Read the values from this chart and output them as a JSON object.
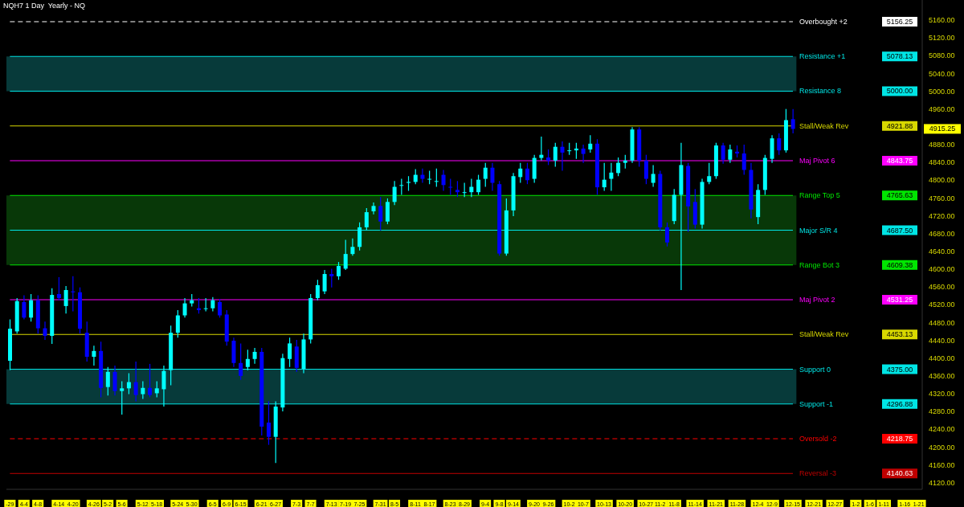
{
  "chart_data": {
    "type": "candlestick",
    "title": "NQH7 1 Day  Yearly - NQ",
    "categories": [
      "-29",
      null,
      "4-4",
      null,
      "4-8",
      null,
      null,
      "4-14",
      null,
      "4-20",
      null,
      null,
      "4-26",
      null,
      "5-2",
      null,
      "5-6",
      null,
      null,
      "5-12",
      null,
      "5-18",
      null,
      null,
      "5-24",
      null,
      "5-30",
      null,
      null,
      "6-5",
      null,
      "6-9",
      null,
      "6-15",
      null,
      null,
      "6-21",
      null,
      "6-27",
      null,
      null,
      "7-3",
      null,
      "7-7",
      null,
      null,
      "7-13",
      null,
      "7-19",
      null,
      "7-25",
      null,
      null,
      "7-31",
      null,
      "8-5",
      null,
      null,
      "8-11",
      null,
      "8-17",
      null,
      null,
      "8-23",
      null,
      "8-29",
      null,
      null,
      "9-4",
      null,
      "9-8",
      null,
      "9-14",
      null,
      null,
      "9-20",
      null,
      "9-26",
      null,
      null,
      "10-2",
      null,
      "10-7",
      null,
      null,
      "10-13",
      null,
      null,
      "10-20",
      null,
      null,
      "10-27",
      null,
      "11-2",
      null,
      "11-8",
      null,
      null,
      "11-14",
      null,
      null,
      "11-21",
      null,
      null,
      "11-28",
      null,
      null,
      "12-4",
      null,
      "12-9",
      null,
      null,
      "12-15",
      null,
      null,
      "12-21",
      null,
      null,
      "12-27",
      null,
      null,
      "1-2",
      null,
      "1-6",
      null,
      "1-11",
      null,
      null,
      "1-16",
      null,
      "1-21"
    ],
    "ohlc": [
      [
        4394,
        4487,
        4373,
        4466
      ],
      [
        4460,
        4535,
        4455,
        4528
      ],
      [
        4526,
        4541,
        4487,
        4491
      ],
      [
        4491,
        4544,
        4482,
        4530
      ],
      [
        4530,
        4541,
        4455,
        4467
      ],
      [
        4467,
        4482,
        4441,
        4450
      ],
      [
        4450,
        4557,
        4432,
        4542
      ],
      [
        4544,
        4582,
        4530,
        4535
      ],
      [
        4517,
        4562,
        4500,
        4553
      ],
      [
        4550,
        4584,
        4505,
        4548
      ],
      [
        4548,
        4559,
        4455,
        4466
      ],
      [
        4457,
        4482,
        4392,
        4403
      ],
      [
        4403,
        4428,
        4383,
        4416
      ],
      [
        4416,
        4437,
        4312,
        4333
      ],
      [
        4335,
        4380,
        4316,
        4369
      ],
      [
        4369,
        4383,
        4316,
        4326
      ],
      [
        4326,
        4348,
        4273,
        4332
      ],
      [
        4332,
        4366,
        4319,
        4346
      ],
      [
        4346,
        4392,
        4303,
        4317
      ],
      [
        4319,
        4348,
        4308,
        4333
      ],
      [
        4333,
        4387,
        4312,
        4317
      ],
      [
        4321,
        4348,
        4312,
        4332
      ],
      [
        4330,
        4383,
        4291,
        4371
      ],
      [
        4373,
        4473,
        4339,
        4457
      ],
      [
        4457,
        4508,
        4446,
        4496
      ],
      [
        4496,
        4535,
        4491,
        4523
      ],
      [
        4523,
        4544,
        4516,
        4530
      ],
      [
        4512,
        4535,
        4500,
        4508
      ],
      [
        4512,
        4535,
        4505,
        4512
      ],
      [
        4512,
        4537,
        4505,
        4530
      ],
      [
        4526,
        4533,
        4491,
        4496
      ],
      [
        4498,
        4508,
        4428,
        4437
      ],
      [
        4439,
        4446,
        4380,
        4389
      ],
      [
        4389,
        4433,
        4351,
        4360
      ],
      [
        4380,
        4419,
        4373,
        4398
      ],
      [
        4398,
        4423,
        4387,
        4414
      ],
      [
        4414,
        4423,
        4226,
        4246
      ],
      [
        4255,
        4303,
        4205,
        4223
      ],
      [
        4223,
        4303,
        4164,
        4291
      ],
      [
        4289,
        4410,
        4280,
        4400
      ],
      [
        4398,
        4446,
        4380,
        4433
      ],
      [
        4426,
        4441,
        4369,
        4378
      ],
      [
        4376,
        4455,
        4366,
        4442
      ],
      [
        4442,
        4544,
        4433,
        4535
      ],
      [
        4535,
        4576,
        4530,
        4564
      ],
      [
        4550,
        4598,
        4544,
        4589
      ],
      [
        4589,
        4601,
        4559,
        4584
      ],
      [
        4584,
        4616,
        4576,
        4607
      ],
      [
        4601,
        4666,
        4598,
        4634
      ],
      [
        4634,
        4669,
        4630,
        4650
      ],
      [
        4650,
        4705,
        4642,
        4694
      ],
      [
        4694,
        4737,
        4687,
        4728
      ],
      [
        4730,
        4750,
        4723,
        4742
      ],
      [
        4742,
        4762,
        4687,
        4707
      ],
      [
        4707,
        4759,
        4701,
        4751
      ],
      [
        4751,
        4798,
        4744,
        4785
      ],
      [
        4789,
        4803,
        4767,
        4789
      ],
      [
        4794,
        4809,
        4776,
        4796
      ],
      [
        4796,
        4825,
        4791,
        4812
      ],
      [
        4812,
        4826,
        4794,
        4803
      ],
      [
        4803,
        4821,
        4791,
        4803
      ],
      [
        4798,
        4826,
        4785,
        4798
      ],
      [
        4812,
        4823,
        4776,
        4789
      ],
      [
        4785,
        4803,
        4767,
        4784
      ],
      [
        4778,
        4798,
        4762,
        4773
      ],
      [
        4773,
        4794,
        4762,
        4773
      ],
      [
        4773,
        4803,
        4762,
        4785
      ],
      [
        4773,
        4812,
        4767,
        4801
      ],
      [
        4803,
        4839,
        4785,
        4828
      ],
      [
        4828,
        4839,
        4776,
        4794
      ],
      [
        4791,
        4798,
        4630,
        4635
      ],
      [
        4635,
        4759,
        4630,
        4732
      ],
      [
        4732,
        4816,
        4719,
        4809
      ],
      [
        4807,
        4839,
        4794,
        4826
      ],
      [
        4826,
        4839,
        4791,
        4800
      ],
      [
        4803,
        4857,
        4794,
        4850
      ],
      [
        4850,
        4898,
        4844,
        4857
      ],
      [
        4851,
        4869,
        4834,
        4844
      ],
      [
        4844,
        4884,
        4830,
        4875
      ],
      [
        4875,
        4887,
        4821,
        4862
      ],
      [
        4866,
        4884,
        4857,
        4867
      ],
      [
        4867,
        4884,
        4848,
        4871
      ],
      [
        4871,
        4880,
        4839,
        4859
      ],
      [
        4869,
        4901,
        4862,
        4882
      ],
      [
        4882,
        4892,
        4767,
        4784
      ],
      [
        4784,
        4839,
        4776,
        4801
      ],
      [
        4803,
        4839,
        4776,
        4817
      ],
      [
        4816,
        4851,
        4809,
        4839
      ],
      [
        4839,
        4857,
        4826,
        4844
      ],
      [
        4844,
        4919,
        4839,
        4914
      ],
      [
        4914,
        4919,
        4830,
        4844
      ],
      [
        4844,
        4857,
        4791,
        4803
      ],
      [
        4794,
        4834,
        4785,
        4814
      ],
      [
        4814,
        4821,
        4687,
        4694
      ],
      [
        4694,
        4705,
        4651,
        4660
      ],
      [
        4708,
        4780,
        4701,
        4767
      ],
      [
        4767,
        4884,
        4553,
        4834
      ],
      [
        4832,
        4839,
        4684,
        4741
      ],
      [
        4751,
        4780,
        4691,
        4700
      ],
      [
        4700,
        4803,
        4691,
        4796
      ],
      [
        4796,
        4839,
        4791,
        4809
      ],
      [
        4809,
        4884,
        4803,
        4878
      ],
      [
        4878,
        4884,
        4837,
        4846
      ],
      [
        4846,
        4880,
        4839,
        4869
      ],
      [
        4864,
        4878,
        4851,
        4860
      ],
      [
        4860,
        4880,
        4812,
        4823
      ],
      [
        4823,
        4839,
        4714,
        4734
      ],
      [
        4717,
        4791,
        4701,
        4778
      ],
      [
        4778,
        4857,
        4767,
        4850
      ],
      [
        4848,
        4901,
        4839,
        4894
      ],
      [
        4894,
        4905,
        4857,
        4867
      ],
      [
        4867,
        4960,
        4862,
        4935
      ],
      [
        4937,
        4960,
        4905,
        4915.25
      ],
      null,
      null,
      null,
      null,
      null,
      null,
      null,
      null,
      null,
      null,
      null,
      null,
      null,
      null,
      null,
      null,
      null,
      null
    ],
    "colors": [
      "#00ffff",
      "#00ffff",
      "#0000ff",
      "#00ffff",
      "#0000ff",
      "#0000ff",
      "#00ffff",
      "#0000ff",
      "#00ffff",
      "#0000ff",
      "#0000ff",
      "#0000ff",
      "#00ffff",
      "#0000ff",
      "#00ffff",
      "#0000ff",
      "#00ffff",
      "#00ffff",
      "#0000ff",
      "#00ffff",
      "#0000ff",
      "#00ffff",
      "#00ffff",
      "#00ffff",
      "#00ffff",
      "#00ffff",
      "#00ffff",
      "#0000ff",
      "#00ffff",
      "#00ffff",
      "#0000ff",
      "#0000ff",
      "#0000ff",
      "#0000ff",
      "#00ffff",
      "#00ffff",
      "#0000ff",
      "#0000ff",
      "#00ffff",
      "#00ffff",
      "#00ffff",
      "#0000ff",
      "#00ffff",
      "#00ffff",
      "#00ffff",
      "#00ffff",
      "#0000ff",
      "#00ffff",
      "#00ffff",
      "#00ffff",
      "#00ffff",
      "#00ffff",
      "#00ffff",
      "#0000ff",
      "#00ffff",
      "#00ffff",
      "#00ffff",
      "#00ffff",
      "#00ffff",
      "#0000ff",
      "#00ffff",
      "#00ffff",
      "#0000ff",
      "#0000ff",
      "#0000ff",
      "#00ffff",
      "#00ffff",
      "#00ffff",
      "#00ffff",
      "#0000ff",
      "#0000ff",
      "#00ffff",
      "#00ffff",
      "#00ffff",
      "#0000ff",
      "#00ffff",
      "#00ffff",
      "#0000ff",
      "#00ffff",
      "#0000ff",
      "#00ffff",
      "#00ffff",
      "#0000ff",
      "#00ffff",
      "#0000ff",
      "#00ffff",
      "#00ffff",
      "#00ffff",
      "#00ffff",
      "#00ffff",
      "#0000ff",
      "#0000ff",
      "#00ffff",
      "#0000ff",
      "#0000ff",
      "#00ffff",
      "#00ffff",
      "#0000ff",
      "#0000ff",
      "#00ffff",
      "#00ffff",
      "#00ffff",
      "#0000ff",
      "#00ffff",
      "#0000ff",
      "#0000ff",
      "#0000ff",
      "#00ffff",
      "#00ffff",
      "#00ffff",
      "#0000ff",
      "#00ffff",
      "#0000ff",
      null,
      null,
      null,
      null,
      null,
      null,
      null,
      null,
      null,
      null,
      null,
      null,
      null,
      null,
      null,
      null,
      null,
      null
    ],
    "ylim": [
      4105,
      5205
    ],
    "yticks": [
      {
        "value": 4120,
        "label": "4120.00"
      },
      {
        "value": 4160,
        "label": "4160.00"
      },
      {
        "value": 4200,
        "label": "4200.00"
      },
      {
        "value": 4240,
        "label": "4240.00"
      },
      {
        "value": 4280,
        "label": "4280.00"
      },
      {
        "value": 4320,
        "label": "4320.00"
      },
      {
        "value": 4360,
        "label": "4360.00"
      },
      {
        "value": 4400,
        "label": "4400.00"
      },
      {
        "value": 4440,
        "label": "4440.00"
      },
      {
        "value": 4480,
        "label": "4480.00"
      },
      {
        "value": 4520,
        "label": "4520.00"
      },
      {
        "value": 4560,
        "label": "4560.00"
      },
      {
        "value": 4600,
        "label": "4600.00"
      },
      {
        "value": 4640,
        "label": "4640.00"
      },
      {
        "value": 4680,
        "label": "4680.00"
      },
      {
        "value": 4720,
        "label": "4720.00"
      },
      {
        "value": 4760,
        "label": "4760.00"
      },
      {
        "value": 4800,
        "label": "4800.00"
      },
      {
        "value": 4840,
        "label": "4840.00"
      },
      {
        "value": 4880,
        "label": "4880.00"
      },
      {
        "value": 4960,
        "label": "4960.00"
      },
      {
        "value": 5000,
        "label": "5000.00"
      },
      {
        "value": 5040,
        "label": "5040.00"
      },
      {
        "value": 5080,
        "label": "5080.00"
      },
      {
        "value": 5120,
        "label": "5120.00"
      },
      {
        "value": 5160,
        "label": "5160.00"
      }
    ],
    "bands": [
      {
        "axis": "y",
        "from": 5000,
        "to": 5078.13,
        "color": "#073a3a"
      },
      {
        "axis": "y",
        "from": 4609.38,
        "to": 4765.63,
        "color": "#083808"
      },
      {
        "axis": "y",
        "from": 4296.88,
        "to": 4375,
        "color": "#073a3a"
      }
    ],
    "ref_lines": [
      {
        "axis": "y",
        "value": 5156.25,
        "label": "Overbought +2",
        "color": "#ffffff",
        "line_style": "dashed"
      },
      {
        "axis": "y",
        "value": 5078.13,
        "label": "Resistance +1",
        "color": "#00e5e5"
      },
      {
        "axis": "y",
        "value": 5000,
        "label": "Resistance 8",
        "color": "#00e5e5"
      },
      {
        "axis": "y",
        "value": 4921.88,
        "label": "Stall/Weak Rev",
        "color": "#d8d800"
      },
      {
        "axis": "y",
        "value": 4843.75,
        "label": "Maj Pivot 6",
        "color": "#ff00ff"
      },
      {
        "axis": "y",
        "value": 4765.63,
        "label": "Range Top 5",
        "color": "#00e600"
      },
      {
        "axis": "y",
        "value": 4687.5,
        "label": "Major S/R 4",
        "color": "#00e5e5"
      },
      {
        "axis": "y",
        "value": 4609.38,
        "label": "Range Bot 3",
        "color": "#00e600"
      },
      {
        "axis": "y",
        "value": 4531.25,
        "label": "Maj Pivot 2",
        "color": "#ff00ff"
      },
      {
        "axis": "y",
        "value": 4453.13,
        "label": "Stall/Weak Rev",
        "color": "#d8d800"
      },
      {
        "axis": "y",
        "value": 4375,
        "label": "Support 0",
        "color": "#00e5e5"
      },
      {
        "axis": "y",
        "value": 4296.88,
        "label": "Support -1",
        "color": "#00e5e5"
      },
      {
        "axis": "y",
        "value": 4218.75,
        "label": "Oversold -2",
        "color": "#ff0000",
        "line_style": "dashed"
      },
      {
        "axis": "y",
        "value": 4140.63,
        "label": "Reversal -3",
        "color": "#c00000"
      }
    ],
    "annotations": [
      "5156.25",
      "5078.13",
      "5000.00",
      "4921.88",
      "4843.75",
      "4765.63",
      "4687.50",
      "4609.38",
      "4531.25",
      "4453.13",
      "4375.00",
      "4296.88",
      "4218.75",
      "4140.63",
      "4915.25"
    ]
  }
}
